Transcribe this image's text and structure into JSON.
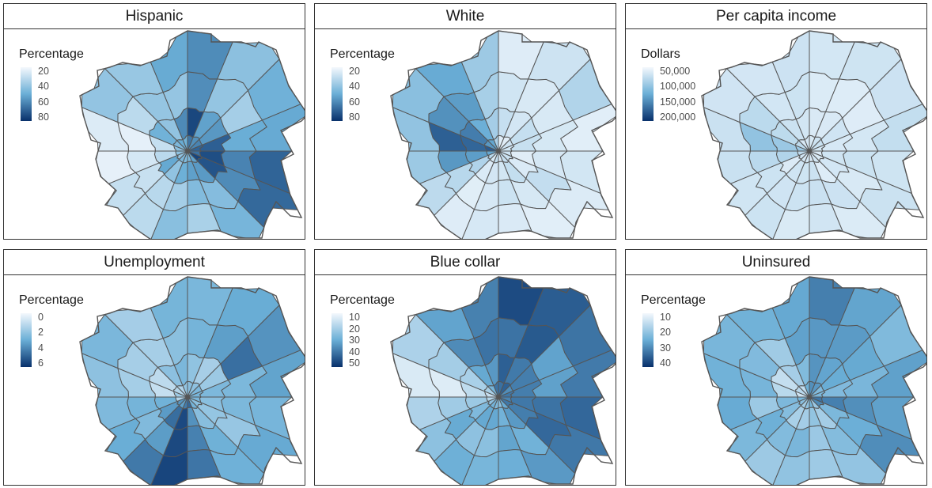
{
  "palette": {
    "light": "#f4f8fd",
    "mid": "#6aaed6",
    "dark": "#08306b",
    "border": "#555555"
  },
  "panels": [
    {
      "title": "Hispanic",
      "legend": {
        "title": "Percentage",
        "labels": [
          "20",
          "40",
          "60",
          "80"
        ]
      },
      "fill": "mixed-high-east-north"
    },
    {
      "title": "White",
      "legend": {
        "title": "Percentage",
        "labels": [
          "20",
          "40",
          "60",
          "80"
        ]
      },
      "fill": "mostly-light-dark-northwest-core"
    },
    {
      "title": "Per capita income",
      "legend": {
        "title": "Dollars",
        "labels": [
          "50,000",
          "100,000",
          "150,000",
          "200,000"
        ]
      },
      "fill": "mostly-light"
    },
    {
      "title": "Unemployment",
      "legend": {
        "title": "Percentage",
        "labels": [
          "0",
          "2",
          "4",
          "6"
        ]
      },
      "fill": "medium-dark-south-east"
    },
    {
      "title": "Blue collar",
      "legend": {
        "title": "Percentage",
        "labels": [
          "10",
          "20",
          "30",
          "40",
          "50"
        ]
      },
      "fill": "dark-north-east"
    },
    {
      "title": "Uninsured",
      "legend": {
        "title": "Percentage",
        "labels": [
          "10",
          "20",
          "30",
          "40"
        ]
      },
      "fill": "medium-dark-north-east"
    }
  ]
}
